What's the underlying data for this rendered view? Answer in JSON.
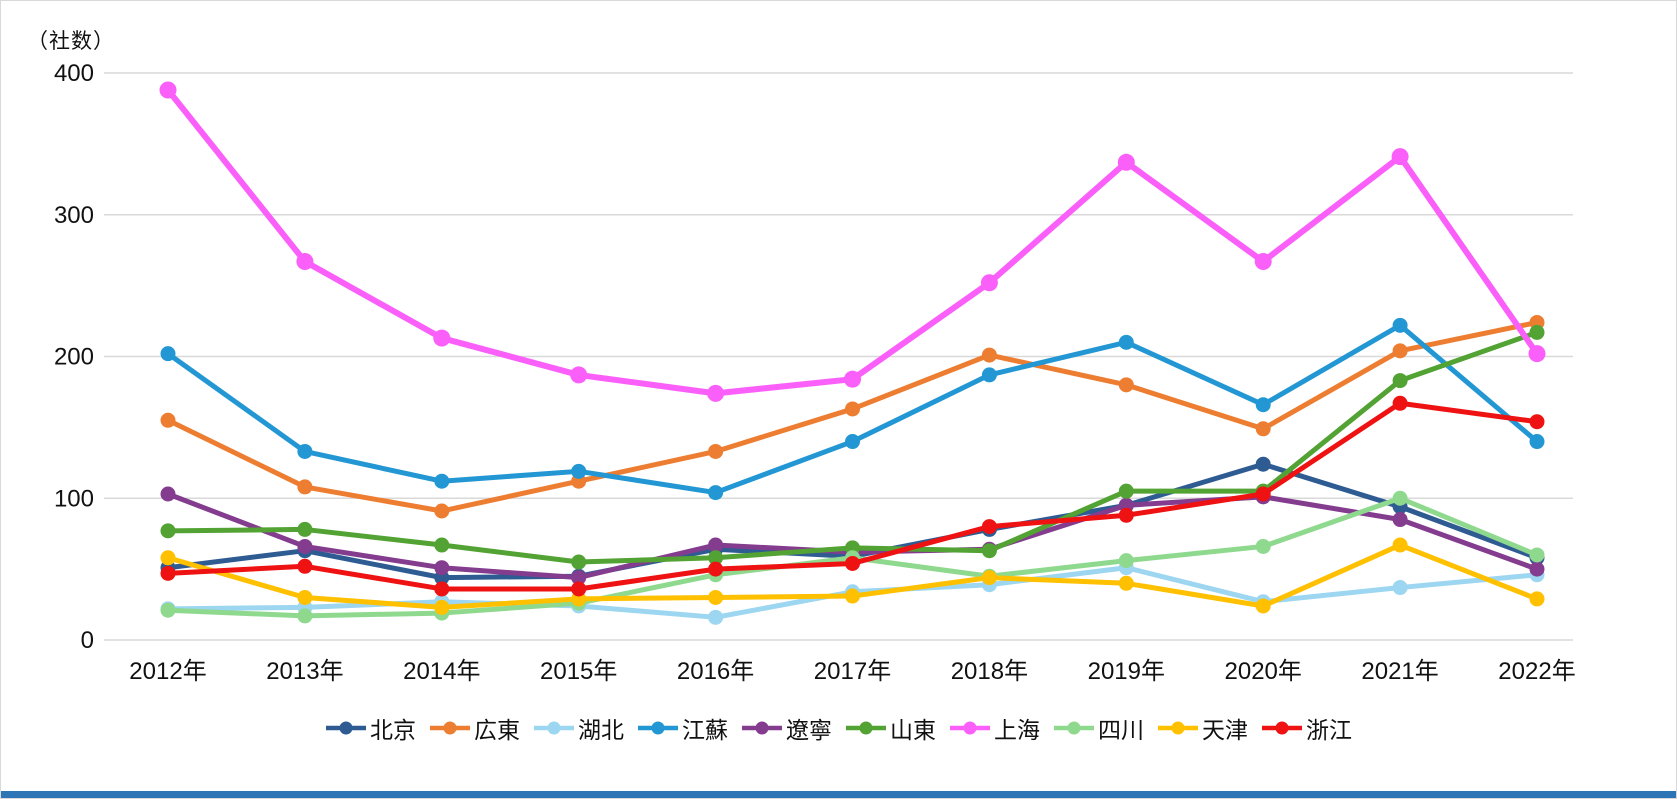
{
  "chart_data": {
    "type": "line",
    "title": "",
    "unit_label": "（社数）",
    "xlabel": "",
    "ylabel": "（社数）",
    "ylim": [
      0,
      400
    ],
    "yticks": [
      0,
      100,
      200,
      300,
      400
    ],
    "grid": true,
    "legend_position": "bottom",
    "categories": [
      "2012年",
      "2013年",
      "2014年",
      "2015年",
      "2016年",
      "2017年",
      "2018年",
      "2019年",
      "2020年",
      "2021年",
      "2022年"
    ],
    "series": [
      {
        "id": "beijing",
        "name": "北京",
        "color": "#2f5b93",
        "values": [
          51,
          63,
          44,
          45,
          64,
          59,
          78,
          95,
          124,
          94,
          58
        ]
      },
      {
        "id": "guangdong",
        "name": "広東",
        "color": "#ed7d31",
        "values": [
          155,
          108,
          91,
          112,
          133,
          163,
          201,
          180,
          149,
          204,
          224
        ]
      },
      {
        "id": "hubei",
        "name": "湖北",
        "color": "#9cd6f0",
        "values": [
          22,
          23,
          27,
          24,
          16,
          34,
          39,
          51,
          27,
          37,
          46
        ]
      },
      {
        "id": "jiangsu",
        "name": "江蘇",
        "color": "#2397d3",
        "values": [
          202,
          133,
          112,
          119,
          104,
          140,
          187,
          210,
          166,
          222,
          140
        ]
      },
      {
        "id": "liaoning",
        "name": "遼寧",
        "color": "#843c8e",
        "values": [
          103,
          66,
          51,
          44,
          67,
          62,
          64,
          95,
          101,
          85,
          50
        ]
      },
      {
        "id": "shandong",
        "name": "山東",
        "color": "#52a333",
        "values": [
          77,
          78,
          67,
          55,
          58,
          65,
          63,
          105,
          105,
          183,
          217
        ]
      },
      {
        "id": "shanghai",
        "name": "上海",
        "color": "#fa5ffa",
        "values": [
          388,
          267,
          213,
          187,
          174,
          184,
          252,
          337,
          267,
          341,
          202
        ]
      },
      {
        "id": "sichuan",
        "name": "四川",
        "color": "#8fd98f",
        "values": [
          21,
          17,
          19,
          26,
          46,
          58,
          45,
          56,
          66,
          100,
          60
        ]
      },
      {
        "id": "tianjin",
        "name": "天津",
        "color": "#ffc000",
        "values": [
          58,
          30,
          23,
          29,
          30,
          31,
          44,
          40,
          24,
          67,
          29
        ]
      },
      {
        "id": "zhejiang",
        "name": "浙江",
        "color": "#ee1212",
        "values": [
          47,
          52,
          36,
          36,
          50,
          54,
          80,
          88,
          103,
          167,
          154
        ]
      }
    ]
  },
  "footer": {
    "bar_color": "#2e75b6"
  },
  "style": {
    "gridline_color": "#d9d9d9",
    "text_color": "#111111"
  }
}
